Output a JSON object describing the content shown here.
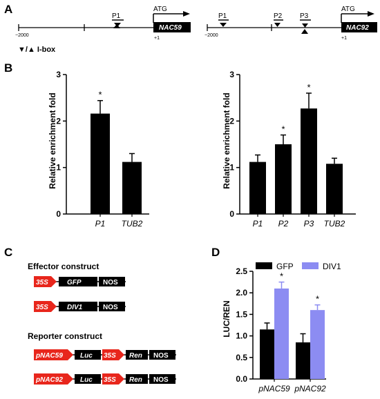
{
  "panels": {
    "a": "A",
    "b": "B",
    "c": "C",
    "d": "D"
  },
  "panel_a": {
    "left": {
      "promoter_start": "−2000",
      "p1": "P1",
      "atg": "ATG",
      "gene": "NAC59",
      "tss": "+1"
    },
    "right": {
      "promoter_start": "−2000",
      "p1": "P1",
      "p2": "P2",
      "p3": "P3",
      "atg": "ATG",
      "gene": "NAC92",
      "tss": "+1"
    },
    "legend": "▼/▲ I-box"
  },
  "chart_data": [
    {
      "type": "bar",
      "id": "B-left",
      "ylabel": "Relative enrichment fold",
      "ylim": [
        0,
        3
      ],
      "yticks": [
        "0",
        "1",
        "2",
        "3"
      ],
      "categories": [
        "P1",
        "TUB2"
      ],
      "values": [
        2.16,
        1.12
      ],
      "errors": [
        0.28,
        0.18
      ],
      "significance": [
        "*",
        ""
      ],
      "color": "#000000"
    },
    {
      "type": "bar",
      "id": "B-right",
      "ylabel": "Relative enrichment fold",
      "ylim": [
        0,
        3
      ],
      "yticks": [
        "0",
        "1",
        "2",
        "3"
      ],
      "categories": [
        "P1",
        "P2",
        "P3",
        "TUB2"
      ],
      "values": [
        1.12,
        1.5,
        2.27,
        1.08
      ],
      "errors": [
        0.15,
        0.2,
        0.33,
        0.12
      ],
      "significance": [
        "",
        "*",
        "*",
        ""
      ],
      "color": "#000000"
    },
    {
      "type": "bar",
      "id": "D",
      "ylabel": "LUC/REN",
      "ylim": [
        0,
        2.5
      ],
      "yticks": [
        "0.0",
        "0.5",
        "1.0",
        "1.5",
        "2.0",
        "2.5"
      ],
      "categories": [
        "pNAC59",
        "pNAC92"
      ],
      "series": [
        {
          "name": "GFP",
          "values": [
            1.15,
            0.85
          ],
          "errors": [
            0.15,
            0.2
          ],
          "significance": [
            "",
            ""
          ],
          "color": "#000000"
        },
        {
          "name": "DIV1",
          "values": [
            2.1,
            1.6
          ],
          "errors": [
            0.15,
            0.12
          ],
          "significance": [
            "*",
            "*"
          ],
          "color": "#8c8cf2"
        }
      ]
    }
  ],
  "panel_c": {
    "effector_title": "Effector construct",
    "reporter_title": "Reporter construct",
    "promoter_35s": "35S",
    "gfp": "GFP",
    "div1": "DIV1",
    "nos": "NOS",
    "pnac59": "pNAC59",
    "pnac92": "pNAC92",
    "luc": "Luc",
    "ren": "Ren",
    "arrow_color": "#e8261c"
  }
}
